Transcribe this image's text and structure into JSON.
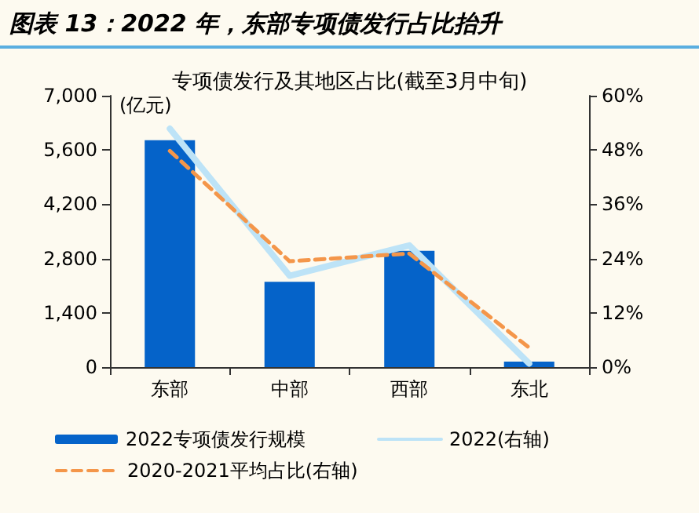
{
  "chart_data": {
    "type": "bar",
    "title": "图表 13：2022 年，东部专项债发行占比抬升",
    "subtitle": "专项债发行及其地区占比(截至3月中旬)",
    "ylabel": "(亿元)",
    "categories": [
      "东部",
      "中部",
      "西部",
      "东北"
    ],
    "series": [
      {
        "name": "2022专项债发行规模",
        "color": "#0563c9",
        "values": [
          5850,
          2200,
          3000,
          140
        ]
      },
      {
        "name": "2022(右轴)",
        "type": "line",
        "axis": "y2",
        "color": "#bde3f7",
        "line_style": "solid",
        "values": [
          52.7,
          20.2,
          26.9,
          0.8
        ]
      },
      {
        "name": "2020-2021平均占比(右轴)",
        "type": "line",
        "axis": "y2",
        "color": "#f4964a",
        "line_style": "dashed",
        "values": [
          47.8,
          23.4,
          25.1,
          4.3
        ]
      }
    ],
    "ylim": [
      0,
      7000
    ],
    "yticks": [
      0,
      {
        "value": 1400,
        "label": "1,400"
      },
      {
        "value": 2800,
        "label": "2,800"
      },
      {
        "value": 4200,
        "label": "4,200"
      },
      {
        "value": 5600,
        "label": "5,600"
      },
      {
        "value": 7000,
        "label": "7,000"
      }
    ],
    "y2lim": [
      0,
      60
    ],
    "y2ticks": [
      {
        "value": 0,
        "label": "0%"
      },
      {
        "value": 12,
        "label": "12%"
      },
      {
        "value": 24,
        "label": "24%"
      },
      {
        "value": 36,
        "label": "36%"
      },
      {
        "value": 48,
        "label": "48%"
      },
      {
        "value": 60,
        "label": "60%"
      }
    ],
    "grid": false,
    "legend": "bottom",
    "marker": "none"
  }
}
